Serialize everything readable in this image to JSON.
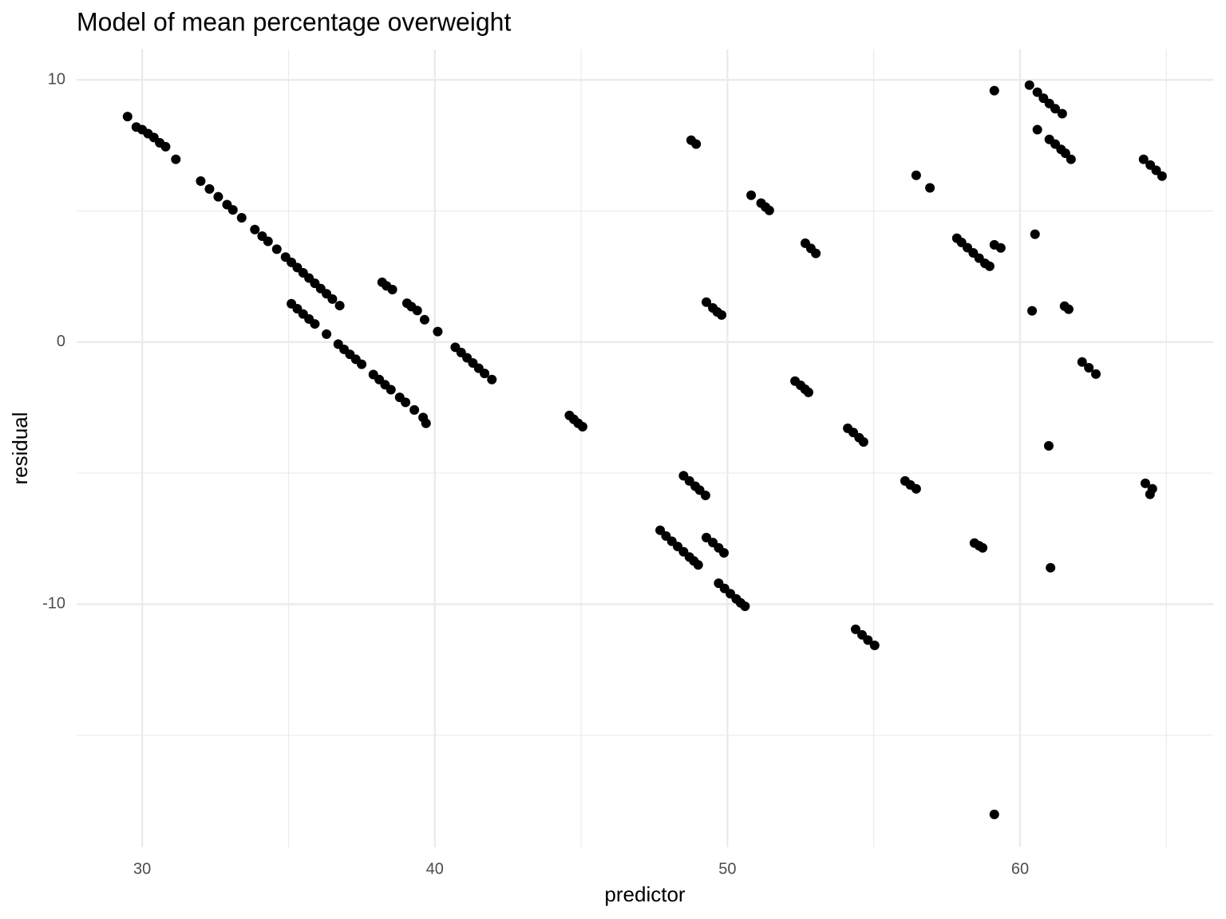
{
  "chart_data": {
    "type": "scatter",
    "title": "Model of mean percentage overweight",
    "x_label": "predictor",
    "y_label": "residual",
    "color": "#000000",
    "xlim": [
      27.76,
      66.6
    ],
    "ylim": [
      -19.27,
      11.16
    ],
    "xticks": [
      30,
      40,
      50,
      60
    ],
    "yticks": [
      -10,
      0,
      10
    ],
    "x_minor_ticks": [
      35,
      45,
      55,
      65
    ],
    "y_minor_ticks": [
      -15,
      -5,
      5
    ],
    "grid": true,
    "x": [
      29.5,
      29.8,
      30.0,
      30.2,
      30.4,
      30.6,
      30.8,
      31.15,
      32.0,
      32.3,
      32.6,
      32.9,
      33.1,
      33.4,
      33.85,
      34.1,
      34.3,
      34.6,
      34.9,
      35.1,
      35.3,
      35.5,
      35.7,
      35.9,
      36.1,
      36.3,
      36.5,
      36.75,
      35.1,
      35.3,
      35.5,
      35.7,
      35.9,
      36.3,
      36.7,
      36.9,
      37.1,
      37.3,
      37.5,
      37.9,
      38.1,
      38.3,
      38.5,
      38.8,
      39.0,
      39.3,
      39.6,
      39.7,
      38.2,
      38.35,
      38.55,
      39.05,
      39.2,
      39.4,
      39.65,
      40.1,
      40.7,
      40.9,
      41.1,
      41.3,
      41.5,
      41.7,
      41.95,
      44.6,
      44.75,
      44.9,
      45.05,
      48.76,
      48.93,
      47.7,
      47.9,
      48.1,
      48.3,
      48.5,
      48.7,
      48.85,
      49.0,
      48.5,
      48.7,
      48.9,
      49.05,
      49.25,
      49.28,
      49.5,
      49.7,
      49.88,
      49.7,
      49.9,
      50.1,
      50.3,
      50.45,
      50.6,
      49.28,
      49.5,
      49.65,
      49.8,
      50.81,
      51.15,
      51.3,
      51.43,
      52.66,
      52.85,
      53.02,
      52.31,
      52.5,
      52.65,
      52.77,
      54.11,
      54.3,
      54.5,
      54.65,
      54.38,
      54.6,
      54.8,
      55.03,
      56.07,
      56.25,
      56.45,
      56.45,
      56.92,
      57.84,
      58.0,
      58.2,
      58.4,
      58.6,
      58.8,
      58.96,
      58.44,
      58.6,
      58.72,
      59.12,
      59.12,
      59.34,
      59.12,
      60.32,
      60.59,
      60.8,
      61.0,
      61.2,
      61.44,
      60.59,
      61.0,
      61.2,
      61.4,
      61.55,
      61.74,
      60.51,
      60.41,
      61.52,
      61.66,
      60.98,
      61.04,
      62.12,
      62.35,
      62.59,
      64.22,
      64.45,
      64.65,
      64.85,
      64.28,
      64.52,
      64.44
    ],
    "values": [
      8.6,
      8.2,
      8.1,
      7.95,
      7.8,
      7.6,
      7.45,
      6.97,
      6.14,
      5.84,
      5.54,
      5.24,
      5.04,
      4.74,
      4.29,
      4.04,
      3.84,
      3.54,
      3.24,
      3.04,
      2.84,
      2.64,
      2.44,
      2.24,
      2.04,
      1.84,
      1.64,
      1.39,
      1.46,
      1.27,
      1.07,
      0.88,
      0.69,
      0.3,
      -0.08,
      -0.28,
      -0.47,
      -0.66,
      -0.85,
      -1.24,
      -1.43,
      -1.63,
      -1.82,
      -2.11,
      -2.3,
      -2.59,
      -2.88,
      -3.1,
      2.28,
      2.14,
      2.0,
      1.48,
      1.35,
      1.2,
      0.85,
      0.4,
      -0.2,
      -0.4,
      -0.6,
      -0.8,
      -1.0,
      -1.2,
      -1.43,
      -2.8,
      -2.95,
      -3.1,
      -3.23,
      7.7,
      7.55,
      -7.18,
      -7.4,
      -7.6,
      -7.8,
      -8.0,
      -8.2,
      -8.35,
      -8.5,
      -5.1,
      -5.3,
      -5.5,
      -5.65,
      -5.85,
      -7.46,
      -7.65,
      -7.85,
      -8.04,
      -9.2,
      -9.4,
      -9.6,
      -9.8,
      -9.95,
      -10.08,
      1.52,
      1.3,
      1.15,
      1.03,
      5.6,
      5.3,
      5.15,
      5.02,
      3.77,
      3.57,
      3.38,
      -1.49,
      -1.65,
      -1.8,
      -1.92,
      -3.29,
      -3.45,
      -3.65,
      -3.81,
      -10.96,
      -11.17,
      -11.37,
      -11.57,
      -5.3,
      -5.45,
      -5.6,
      6.36,
      5.88,
      3.96,
      3.8,
      3.6,
      3.4,
      3.2,
      3.0,
      2.89,
      -7.67,
      -7.77,
      -7.85,
      9.59,
      3.71,
      3.59,
      -18.02,
      9.8,
      9.53,
      9.3,
      9.1,
      8.9,
      8.71,
      8.1,
      7.73,
      7.55,
      7.35,
      7.2,
      6.97,
      4.11,
      1.19,
      1.37,
      1.25,
      -3.96,
      -8.61,
      -0.76,
      -0.98,
      -1.22,
      6.97,
      6.75,
      6.55,
      6.33,
      -5.39,
      -5.6,
      -5.81
    ]
  }
}
